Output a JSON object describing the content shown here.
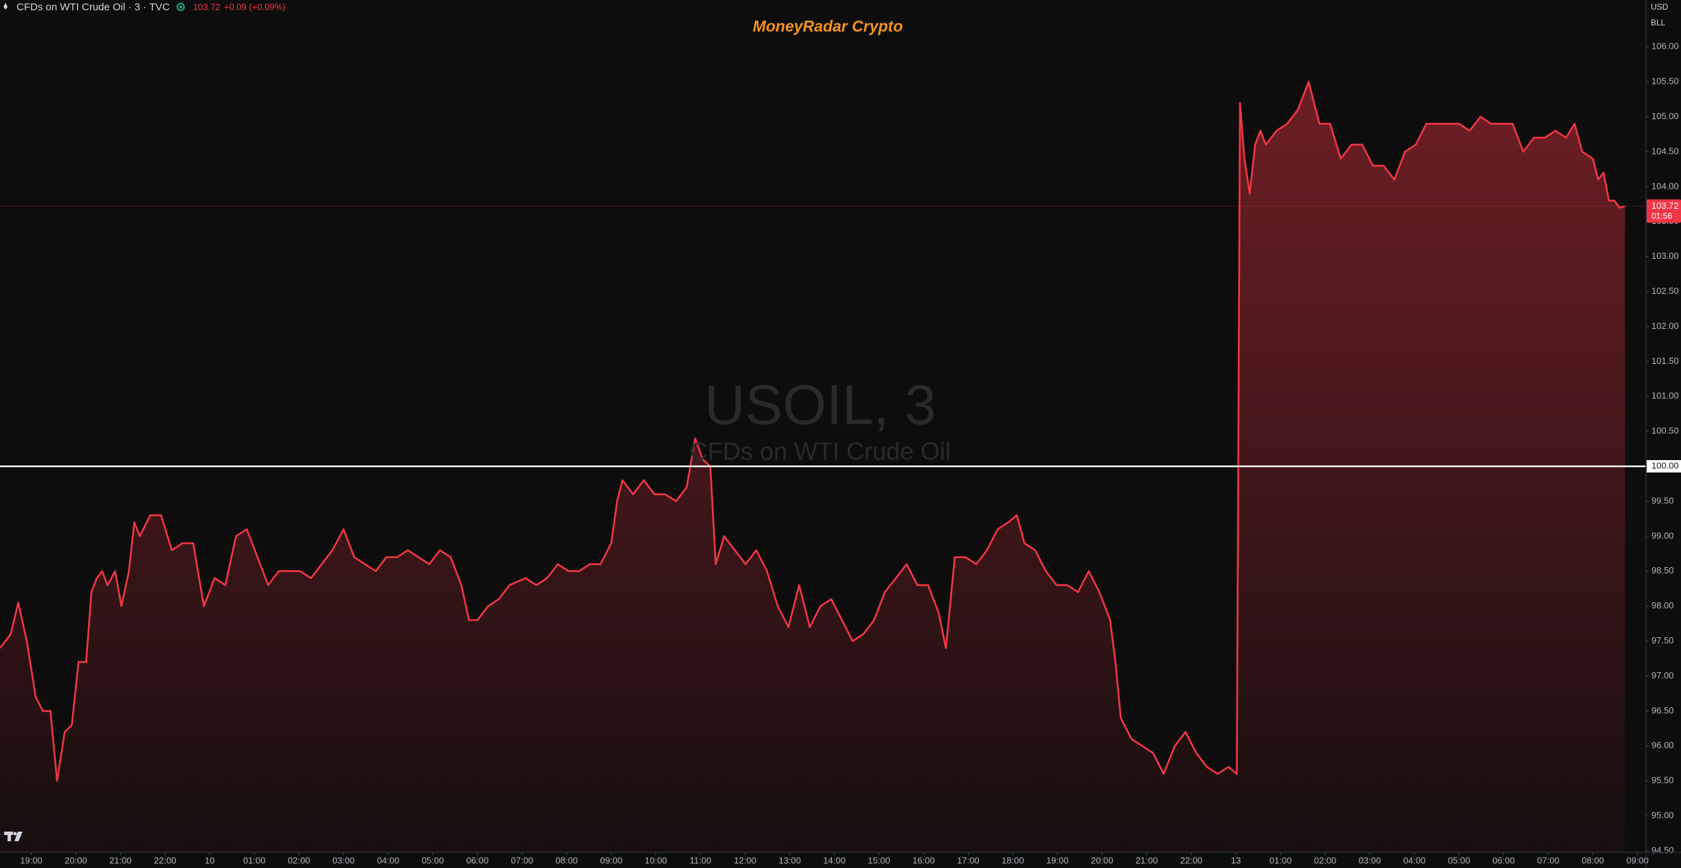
{
  "chart_data": {
    "type": "area",
    "header": "CFDs on WTI Crude Oil · 3 · TVC",
    "header_price": 103.72,
    "header_change": "+0.09 (+0.09%)",
    "title": "MoneyRadar Crypto",
    "watermark_symbol": "USOIL, 3",
    "watermark_name": "CFDs on WTI Crude Oil",
    "currency": "USD",
    "unit": "BLL",
    "color": "#f23645",
    "hline": 100,
    "hline_color": "#ffffff",
    "last_price": 103.72,
    "countdown": "01:56",
    "xlim": [
      -0.7,
      36.19
    ],
    "ylim": [
      94.48,
      106.67
    ],
    "xticks": [
      {
        "value": 0,
        "label": "19:00"
      },
      {
        "value": 1,
        "label": "20:00"
      },
      {
        "value": 2,
        "label": "21:00"
      },
      {
        "value": 3,
        "label": "22:00"
      },
      {
        "value": 4,
        "label": "10"
      },
      {
        "value": 5,
        "label": "01:00"
      },
      {
        "value": 6,
        "label": "02:00"
      },
      {
        "value": 7,
        "label": "03:00"
      },
      {
        "value": 8,
        "label": "04:00"
      },
      {
        "value": 9,
        "label": "05:00"
      },
      {
        "value": 10,
        "label": "06:00"
      },
      {
        "value": 11,
        "label": "07:00"
      },
      {
        "value": 12,
        "label": "08:00"
      },
      {
        "value": 13,
        "label": "09:00"
      },
      {
        "value": 14,
        "label": "10:00"
      },
      {
        "value": 15,
        "label": "11:00"
      },
      {
        "value": 16,
        "label": "12:00"
      },
      {
        "value": 17,
        "label": "13:00"
      },
      {
        "value": 18,
        "label": "14:00"
      },
      {
        "value": 19,
        "label": "15:00"
      },
      {
        "value": 20,
        "label": "16:00"
      },
      {
        "value": 21,
        "label": "17:00"
      },
      {
        "value": 22,
        "label": "18:00"
      },
      {
        "value": 23,
        "label": "19:00"
      },
      {
        "value": 24,
        "label": "20:00"
      },
      {
        "value": 25,
        "label": "21:00"
      },
      {
        "value": 26,
        "label": "22:00"
      },
      {
        "value": 27,
        "label": "13"
      },
      {
        "value": 28,
        "label": "01:00"
      },
      {
        "value": 29,
        "label": "02:00"
      },
      {
        "value": 30,
        "label": "03:00"
      },
      {
        "value": 31,
        "label": "04:00"
      },
      {
        "value": 32,
        "label": "05:00"
      },
      {
        "value": 33,
        "label": "06:00"
      },
      {
        "value": 34,
        "label": "07:00"
      },
      {
        "value": 35,
        "label": "08:00"
      },
      {
        "value": 36,
        "label": "09:00"
      }
    ],
    "yticks": [
      {
        "value": 94.5,
        "label": "94.50"
      },
      {
        "value": 95,
        "label": "95.00"
      },
      {
        "value": 95.5,
        "label": "95.50"
      },
      {
        "value": 96,
        "label": "96.00"
      },
      {
        "value": 96.5,
        "label": "96.50"
      },
      {
        "value": 97,
        "label": "97.00"
      },
      {
        "value": 97.5,
        "label": "97.50"
      },
      {
        "value": 98,
        "label": "98.00"
      },
      {
        "value": 98.5,
        "label": "98.50"
      },
      {
        "value": 99,
        "label": "99.00"
      },
      {
        "value": 99.5,
        "label": "99.50"
      },
      {
        "value": 100,
        "label": "100.00"
      },
      {
        "value": 100.5,
        "label": "100.50"
      },
      {
        "value": 101,
        "label": "101.00"
      },
      {
        "value": 101.5,
        "label": "101.50"
      },
      {
        "value": 102,
        "label": "102.00"
      },
      {
        "value": 102.5,
        "label": "102.50"
      },
      {
        "value": 103,
        "label": "103.00"
      },
      {
        "value": 103.5,
        "label": "103.50"
      },
      {
        "value": 104,
        "label": "104.00"
      },
      {
        "value": 104.5,
        "label": "104.50"
      },
      {
        "value": 105,
        "label": "105.00"
      },
      {
        "value": 105.5,
        "label": "105.50"
      },
      {
        "value": 106,
        "label": "106.00"
      }
    ],
    "x": [
      -0.7,
      -0.46,
      -0.29,
      -0.1,
      0.1,
      0.26,
      0.43,
      0.58,
      0.75,
      0.91,
      1.06,
      1.23,
      1.35,
      1.47,
      1.59,
      1.71,
      1.88,
      2.02,
      2.19,
      2.31,
      2.43,
      2.67,
      2.91,
      3.15,
      3.39,
      3.63,
      3.87,
      4.11,
      4.35,
      4.59,
      4.83,
      5.07,
      5.31,
      5.55,
      5.79,
      6.03,
      6.27,
      6.51,
      6.75,
      7.0,
      7.24,
      7.48,
      7.72,
      7.96,
      8.2,
      8.44,
      8.68,
      8.92,
      9.16,
      9.4,
      9.64,
      9.81,
      10.0,
      10.24,
      10.48,
      10.72,
      11.08,
      11.32,
      11.56,
      11.8,
      12.04,
      12.28,
      12.52,
      12.76,
      13.0,
      13.13,
      13.25,
      13.49,
      13.73,
      13.97,
      14.21,
      14.45,
      14.69,
      14.88,
      15.05,
      15.22,
      15.34,
      15.53,
      15.77,
      16.01,
      16.25,
      16.49,
      16.73,
      16.97,
      17.21,
      17.45,
      17.69,
      17.93,
      18.17,
      18.41,
      18.65,
      18.89,
      19.13,
      19.38,
      19.62,
      19.86,
      20.1,
      20.34,
      20.5,
      20.7,
      20.94,
      21.18,
      21.42,
      21.66,
      21.9,
      22.09,
      22.26,
      22.5,
      22.74,
      22.98,
      23.22,
      23.46,
      23.7,
      23.94,
      24.18,
      24.3,
      24.42,
      24.66,
      24.9,
      25.14,
      25.38,
      25.63,
      25.87,
      26.11,
      26.35,
      26.59,
      26.83,
      27.02,
      27.09,
      27.19,
      27.31,
      27.43,
      27.55,
      27.67,
      27.91,
      28.15,
      28.39,
      28.63,
      28.87,
      29.11,
      29.35,
      29.59,
      29.83,
      30.07,
      30.31,
      30.55,
      30.79,
      31.03,
      31.27,
      31.51,
      31.75,
      32.0,
      32.24,
      32.48,
      32.72,
      32.96,
      33.2,
      33.44,
      33.68,
      33.92,
      34.16,
      34.4,
      34.59,
      34.76,
      35.0,
      35.12,
      35.24,
      35.36,
      35.48,
      35.6,
      35.72
    ],
    "values": [
      97.4,
      97.6,
      98.05,
      97.5,
      96.7,
      96.5,
      96.5,
      95.5,
      96.2,
      96.3,
      97.2,
      97.2,
      98.2,
      98.4,
      98.5,
      98.3,
      98.5,
      98.0,
      98.5,
      99.2,
      99.0,
      99.3,
      99.3,
      98.8,
      98.9,
      98.9,
      98.0,
      98.4,
      98.3,
      99.0,
      99.1,
      98.7,
      98.3,
      98.5,
      98.5,
      98.5,
      98.4,
      98.6,
      98.8,
      99.1,
      98.7,
      98.6,
      98.5,
      98.7,
      98.7,
      98.8,
      98.7,
      98.6,
      98.8,
      98.7,
      98.3,
      97.8,
      97.8,
      98.0,
      98.1,
      98.3,
      98.4,
      98.3,
      98.4,
      98.6,
      98.5,
      98.5,
      98.6,
      98.6,
      98.9,
      99.5,
      99.8,
      99.6,
      99.8,
      99.6,
      99.6,
      99.5,
      99.7,
      100.4,
      100.1,
      100.0,
      98.6,
      99.0,
      98.8,
      98.6,
      98.8,
      98.5,
      98.0,
      97.7,
      98.3,
      97.7,
      98.0,
      98.1,
      97.8,
      97.5,
      97.6,
      97.8,
      98.2,
      98.4,
      98.6,
      98.3,
      98.3,
      97.9,
      97.4,
      98.7,
      98.7,
      98.6,
      98.8,
      99.1,
      99.2,
      99.3,
      98.9,
      98.8,
      98.5,
      98.3,
      98.3,
      98.2,
      98.5,
      98.2,
      97.8,
      97.2,
      96.4,
      96.1,
      96.0,
      95.9,
      95.6,
      96.0,
      96.2,
      95.9,
      95.7,
      95.6,
      95.7,
      95.6,
      105.2,
      104.4,
      103.9,
      104.6,
      104.8,
      104.6,
      104.8,
      104.9,
      105.1,
      105.5,
      104.9,
      104.9,
      104.4,
      104.6,
      104.6,
      104.3,
      104.3,
      104.1,
      104.5,
      104.6,
      104.9,
      104.9,
      104.9,
      104.9,
      104.8,
      105.0,
      104.9,
      104.9,
      104.9,
      104.5,
      104.7,
      104.7,
      104.8,
      104.7,
      104.9,
      104.5,
      104.4,
      104.1,
      104.2,
      103.8,
      103.8,
      103.7,
      103.72
    ]
  }
}
